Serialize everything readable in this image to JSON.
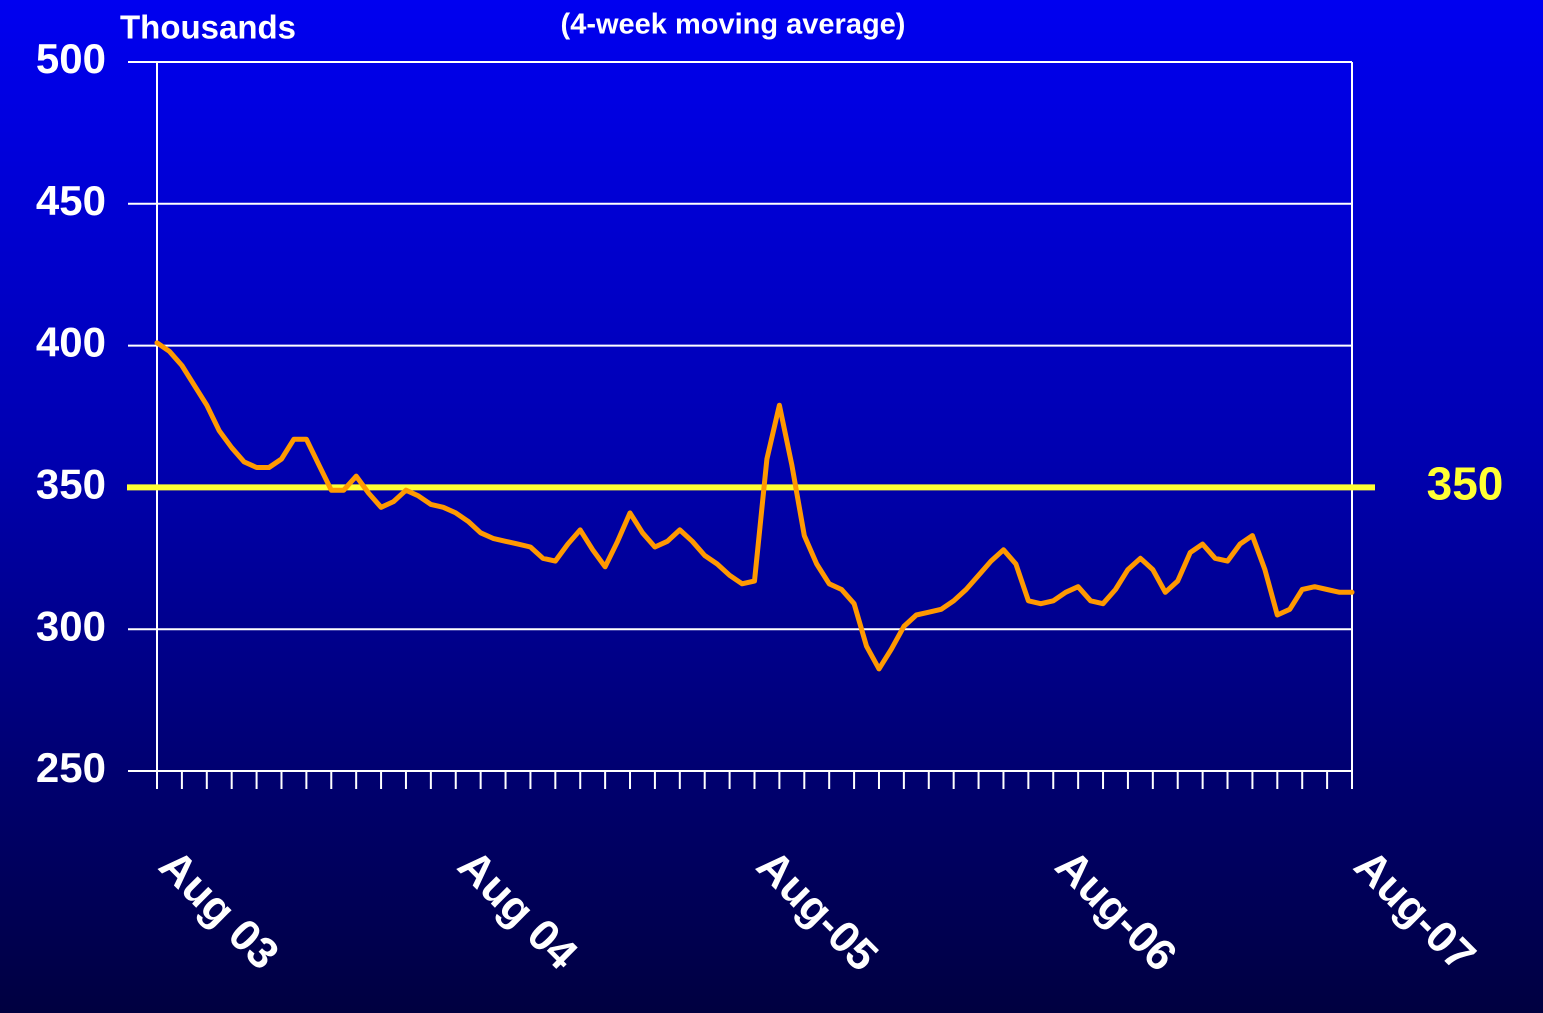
{
  "chart_data": {
    "type": "line",
    "y_label": "Thousands",
    "subtitle": "(4-week moving average)",
    "categories": [
      "Aug 03",
      null,
      null,
      null,
      null,
      null,
      null,
      null,
      null,
      null,
      null,
      null,
      null,
      null,
      null,
      null,
      null,
      null,
      null,
      null,
      null,
      null,
      null,
      null,
      "Aug 04",
      null,
      null,
      null,
      null,
      null,
      null,
      null,
      null,
      null,
      null,
      null,
      null,
      null,
      null,
      null,
      null,
      null,
      null,
      null,
      null,
      null,
      null,
      null,
      "Aug-05",
      null,
      null,
      null,
      null,
      null,
      null,
      null,
      null,
      null,
      null,
      null,
      null,
      null,
      null,
      null,
      null,
      null,
      null,
      null,
      null,
      null,
      null,
      null,
      "Aug-06",
      null,
      null,
      null,
      null,
      null,
      null,
      null,
      null,
      null,
      null,
      null,
      null,
      null,
      null,
      null,
      null,
      null,
      null,
      null,
      null,
      null,
      null,
      null,
      "Aug-07"
    ],
    "values": [
      401,
      398,
      393,
      386,
      379,
      370,
      364,
      359,
      357,
      357,
      360,
      367,
      367,
      358,
      349,
      349,
      354,
      348,
      343,
      345,
      349,
      347,
      344,
      343,
      341,
      338,
      334,
      332,
      331,
      330,
      329,
      325,
      324,
      330,
      335,
      328,
      322,
      331,
      341,
      334,
      329,
      331,
      335,
      331,
      326,
      323,
      319,
      316,
      317,
      360,
      379,
      358,
      333,
      323,
      316,
      314,
      309,
      294,
      286,
      293,
      301,
      305,
      306,
      307,
      310,
      314,
      319,
      324,
      328,
      323,
      310,
      309,
      310,
      313,
      315,
      310,
      309,
      314,
      321,
      325,
      321,
      313,
      317,
      327,
      330,
      325,
      324,
      330,
      333,
      321,
      305,
      307,
      314,
      315,
      314,
      313,
      313
    ],
    "color": "#ff9900",
    "ylim": [
      250,
      500
    ],
    "yticks": [
      250,
      300,
      350,
      400,
      450,
      500
    ],
    "grid": true,
    "reference_line": {
      "value": 350,
      "color": "#ffff33"
    }
  }
}
